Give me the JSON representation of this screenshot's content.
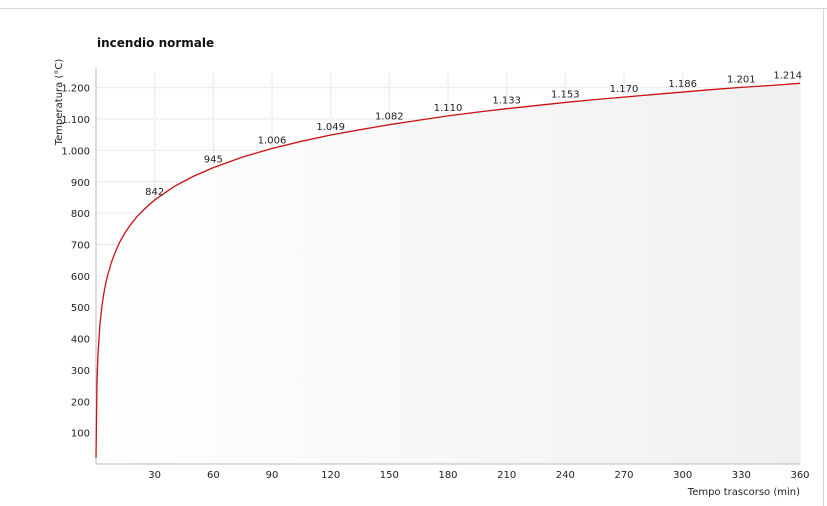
{
  "chart_data": {
    "type": "line",
    "title": "incendio normale",
    "xlabel": "Tempo trascorso (min)",
    "ylabel": "Temperatura (°C)",
    "xlim": [
      0,
      360
    ],
    "ylim": [
      0,
      1250
    ],
    "x_ticks": [
      30,
      60,
      90,
      120,
      150,
      180,
      210,
      240,
      270,
      300,
      330,
      360
    ],
    "x_tick_labels": [
      "30",
      "60",
      "90",
      "120",
      "150",
      "180",
      "210",
      "240",
      "270",
      "300",
      "330",
      "360"
    ],
    "y_ticks": [
      100,
      200,
      300,
      400,
      500,
      600,
      700,
      800,
      900,
      1000,
      1100,
      1200
    ],
    "y_tick_labels": [
      "100",
      "200",
      "300",
      "400",
      "500",
      "600",
      "700",
      "800",
      "900",
      "1.000",
      "1.100",
      "1.200"
    ],
    "grid": true,
    "series": [
      {
        "color": "#cc1111",
        "x": [
          0,
          0.5,
          1,
          2,
          3,
          4,
          5,
          6,
          8,
          10,
          12,
          15,
          18,
          21,
          24,
          27,
          30,
          40,
          50,
          60,
          75,
          90,
          105,
          120,
          135,
          150,
          165,
          180,
          195,
          210,
          225,
          240,
          255,
          270,
          285,
          300,
          315,
          330,
          345,
          360
        ],
        "y": [
          20,
          261,
          349,
          445,
          502,
          544,
          576,
          603,
          645,
          678,
          706,
          739,
          766,
          789,
          808,
          826,
          842,
          885,
          918,
          945,
          979,
          1006,
          1029,
          1049,
          1066,
          1082,
          1096,
          1110,
          1122,
          1133,
          1143,
          1153,
          1162,
          1170,
          1178,
          1186,
          1194,
          1201,
          1207,
          1214
        ]
      }
    ],
    "data_labels": [
      {
        "x": 30,
        "y": 842,
        "text": "842"
      },
      {
        "x": 60,
        "y": 945,
        "text": "945"
      },
      {
        "x": 90,
        "y": 1006,
        "text": "1.006"
      },
      {
        "x": 120,
        "y": 1049,
        "text": "1.049"
      },
      {
        "x": 150,
        "y": 1082,
        "text": "1.082"
      },
      {
        "x": 180,
        "y": 1110,
        "text": "1.110"
      },
      {
        "x": 210,
        "y": 1133,
        "text": "1.133"
      },
      {
        "x": 240,
        "y": 1153,
        "text": "1.153"
      },
      {
        "x": 270,
        "y": 1170,
        "text": "1.170"
      },
      {
        "x": 300,
        "y": 1186,
        "text": "1.186"
      },
      {
        "x": 330,
        "y": 1201,
        "text": "1.201"
      },
      {
        "x": 360,
        "y": 1214,
        "text": "1.214"
      }
    ]
  }
}
